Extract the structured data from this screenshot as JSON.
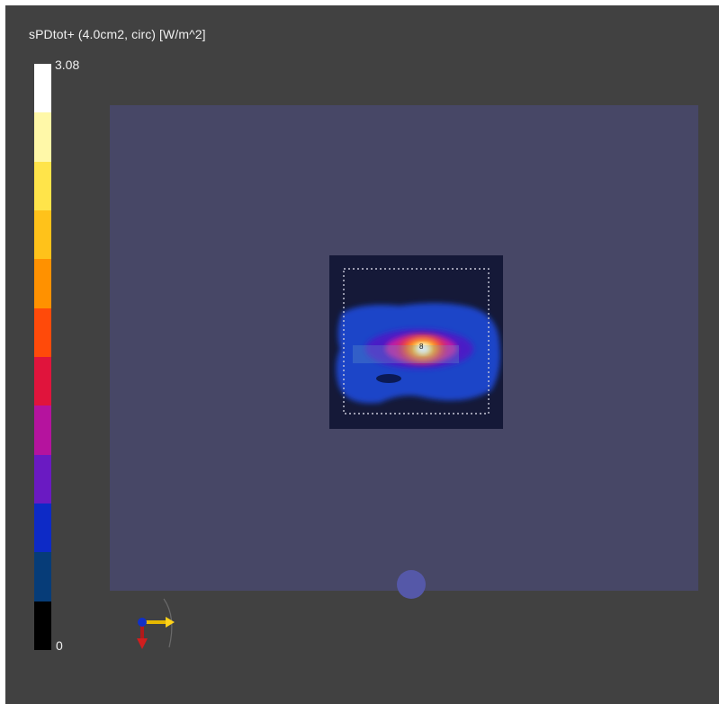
{
  "legend": {
    "title": "sPDtot+ (4.0cm2, circ) [W/m^2]",
    "max_label": "3.08",
    "min_label": "0",
    "colors_top_to_bottom": [
      "#ffffff",
      "#fff8a8",
      "#ffe44a",
      "#ffc21a",
      "#ff9100",
      "#ff4a0a",
      "#e0143c",
      "#b5139e",
      "#6a1ac2",
      "#0d2ac6",
      "#063c78",
      "#000000"
    ]
  },
  "scene": {
    "background_color": "#414141",
    "ground_plane_color": "#474766",
    "scan_area_color": "#151938",
    "port_color": "#5558a8",
    "peak_marker": "8"
  }
}
